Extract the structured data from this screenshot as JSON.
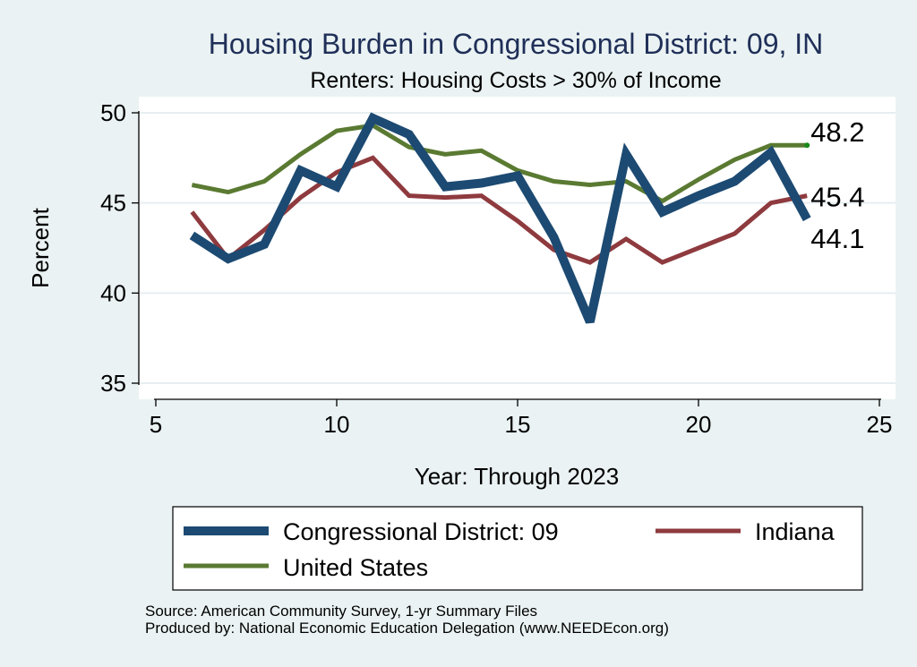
{
  "chart_data": {
    "type": "line",
    "title": "Housing Burden in Congressional District:  09, IN",
    "subtitle": "Renters: Housing Costs > 30% of Income",
    "xlabel": "Year: Through 2023",
    "ylabel": "Percent",
    "xlim": [
      5,
      25
    ],
    "ylim": [
      35,
      50
    ],
    "x_ticks": [
      "5",
      "10",
      "15",
      "20",
      "25"
    ],
    "y_ticks": [
      "35",
      "40",
      "45",
      "50"
    ],
    "grid": true,
    "series": [
      {
        "name": "Congressional District:  09",
        "color": "#1c4a72",
        "x": [
          6,
          7,
          8,
          9,
          10,
          11,
          12,
          13,
          14,
          15,
          16,
          17,
          18,
          19,
          20,
          21,
          22,
          23
        ],
        "values": [
          43.2,
          41.9,
          42.7,
          46.8,
          45.9,
          49.7,
          48.8,
          45.9,
          46.1,
          46.5,
          43.1,
          38.4,
          47.7,
          44.5,
          45.4,
          46.2,
          47.8,
          44.1
        ],
        "end_label": "44.1"
      },
      {
        "name": "Indiana",
        "color": "#8e3a3e",
        "x": [
          6,
          7,
          8,
          9,
          10,
          11,
          12,
          13,
          14,
          15,
          16,
          17,
          18,
          19,
          20,
          21,
          22,
          23
        ],
        "values": [
          44.5,
          41.9,
          43.5,
          45.3,
          46.7,
          47.5,
          45.4,
          45.3,
          45.4,
          44.0,
          42.4,
          41.7,
          43.0,
          41.7,
          42.5,
          43.3,
          45.0,
          45.4
        ],
        "end_label": "45.4"
      },
      {
        "name": "United States",
        "color": "#5a7a32",
        "x": [
          6,
          7,
          8,
          9,
          10,
          11,
          12,
          13,
          14,
          15,
          16,
          17,
          18,
          19,
          20,
          21,
          22,
          23
        ],
        "values": [
          46.0,
          45.6,
          46.2,
          47.7,
          49.0,
          49.3,
          48.1,
          47.7,
          47.9,
          46.8,
          46.2,
          46.0,
          46.2,
          45.1,
          46.3,
          47.4,
          48.2,
          48.2
        ],
        "end_label": "48.2"
      }
    ],
    "legend": [
      "Congressional District:  09",
      "Indiana",
      "United States"
    ]
  },
  "source": {
    "line1": "Source: American Community Survey, 1-yr Summary Files",
    "line2": "Produced by: National Economic Education Delegation (www.NEEDEcon.org)"
  }
}
